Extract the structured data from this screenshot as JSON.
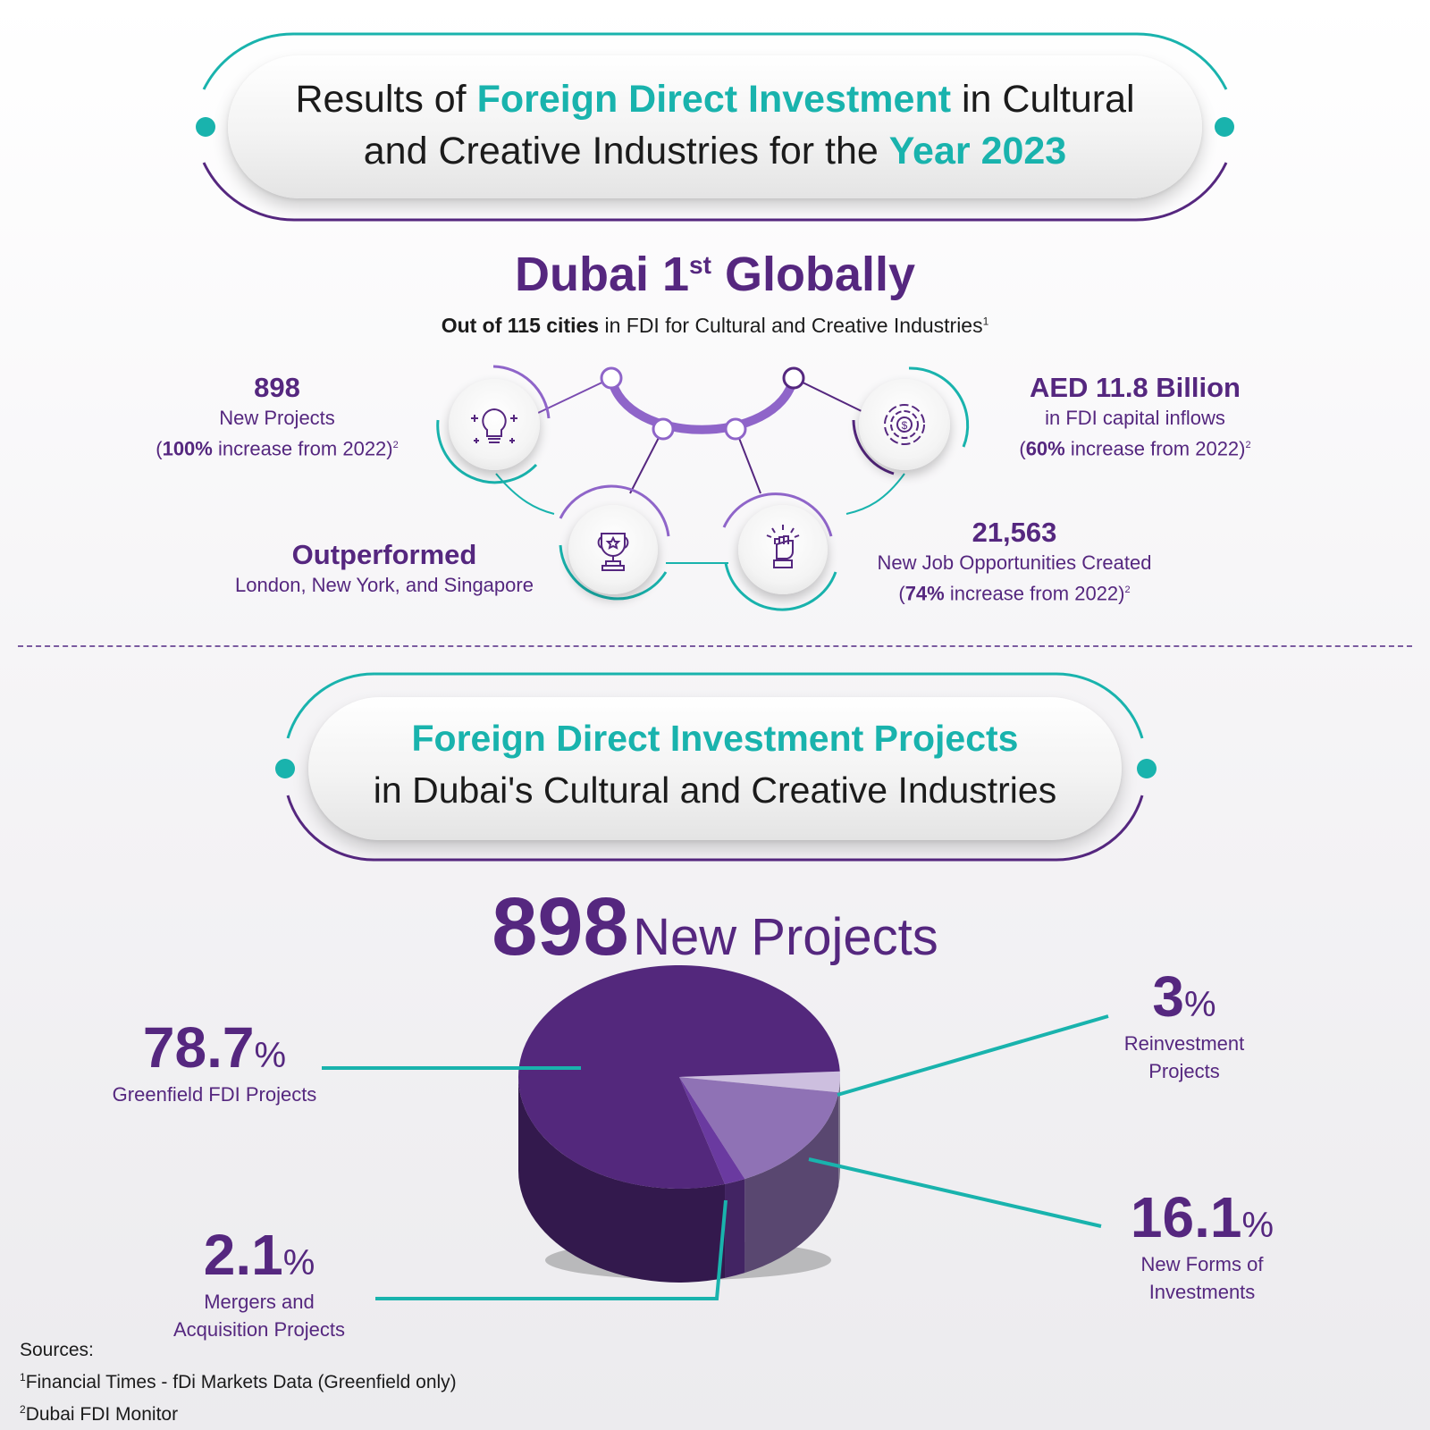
{
  "header": {
    "line1_a": "Results of ",
    "line1_b": "Foreign Direct Investment",
    "line1_c": " in Cultural",
    "line2_a": "and Creative Industries for the ",
    "line2_b": "Year 2023"
  },
  "ranking": {
    "title_a": "Dubai 1",
    "title_sup": "st",
    "title_b": " Globally",
    "subtitle_bold": "Out of 115 cities",
    "subtitle_rest": " in FDI for Cultural and Creative Industries",
    "subtitle_sup": "1"
  },
  "stats": {
    "projects": {
      "value": "898",
      "label": "New Projects",
      "pct": "100%",
      "pct_rest": " increase from 2022)",
      "open": "(",
      "sup": "2"
    },
    "capital": {
      "value": "AED 11.8 Billion",
      "label": "in FDI capital inflows",
      "pct": "60%",
      "pct_rest": " increase from 2022)",
      "open": "(",
      "sup": "2"
    },
    "outperformed": {
      "value": "Outperformed",
      "label": "London, New York, and Singapore"
    },
    "jobs": {
      "value": "21,563",
      "label": "New Job Opportunities Created",
      "pct": "74%",
      "pct_rest": " increase from 2022)",
      "open": "(",
      "sup": "2"
    }
  },
  "icons": {
    "projects": "lightbulb-icon",
    "capital": "dollar-spiral-icon",
    "outperformed": "trophy-icon",
    "jobs": "raised-fist-icon"
  },
  "section2": {
    "line1": "Foreign Direct Investment Projects",
    "line2": "in Dubai's Cultural and Creative Industries",
    "big_num": "898",
    "big_label": "New Projects"
  },
  "chart_data": {
    "type": "pie",
    "title": "898 New Projects",
    "unit": "%",
    "slices": [
      {
        "label": "Greenfield FDI Projects",
        "value": 78.7,
        "value_text": "78.7",
        "color": "#53287c"
      },
      {
        "label": "Reinvestment Projects",
        "value": 3,
        "value_text": "3",
        "color": "#cdbfdf"
      },
      {
        "label": "New Forms of Investments",
        "value": 16.1,
        "value_text": "16.1",
        "color": "#8f72b5"
      },
      {
        "label": "Mergers and Acquisition Projects",
        "value": 2.1,
        "value_text": "2.1",
        "color": "#6a3aa0"
      }
    ],
    "labels": {
      "greenfield": [
        "Greenfield FDI Projects"
      ],
      "reinvestment": [
        "Reinvestment",
        "Projects"
      ],
      "newforms": [
        "New Forms of",
        "Investments"
      ],
      "mergers": [
        "Mergers and",
        "Acquisition Projects"
      ]
    },
    "pct_symbol": "%"
  },
  "sources": {
    "heading": "Sources:",
    "s1_sup": "1",
    "s1": "Financial Times - fDi Markets Data (Greenfield only)",
    "s2_sup": "2",
    "s2": "Dubai FDI Monitor"
  },
  "colors": {
    "teal": "#19b3ad",
    "purple": "#55277f"
  }
}
